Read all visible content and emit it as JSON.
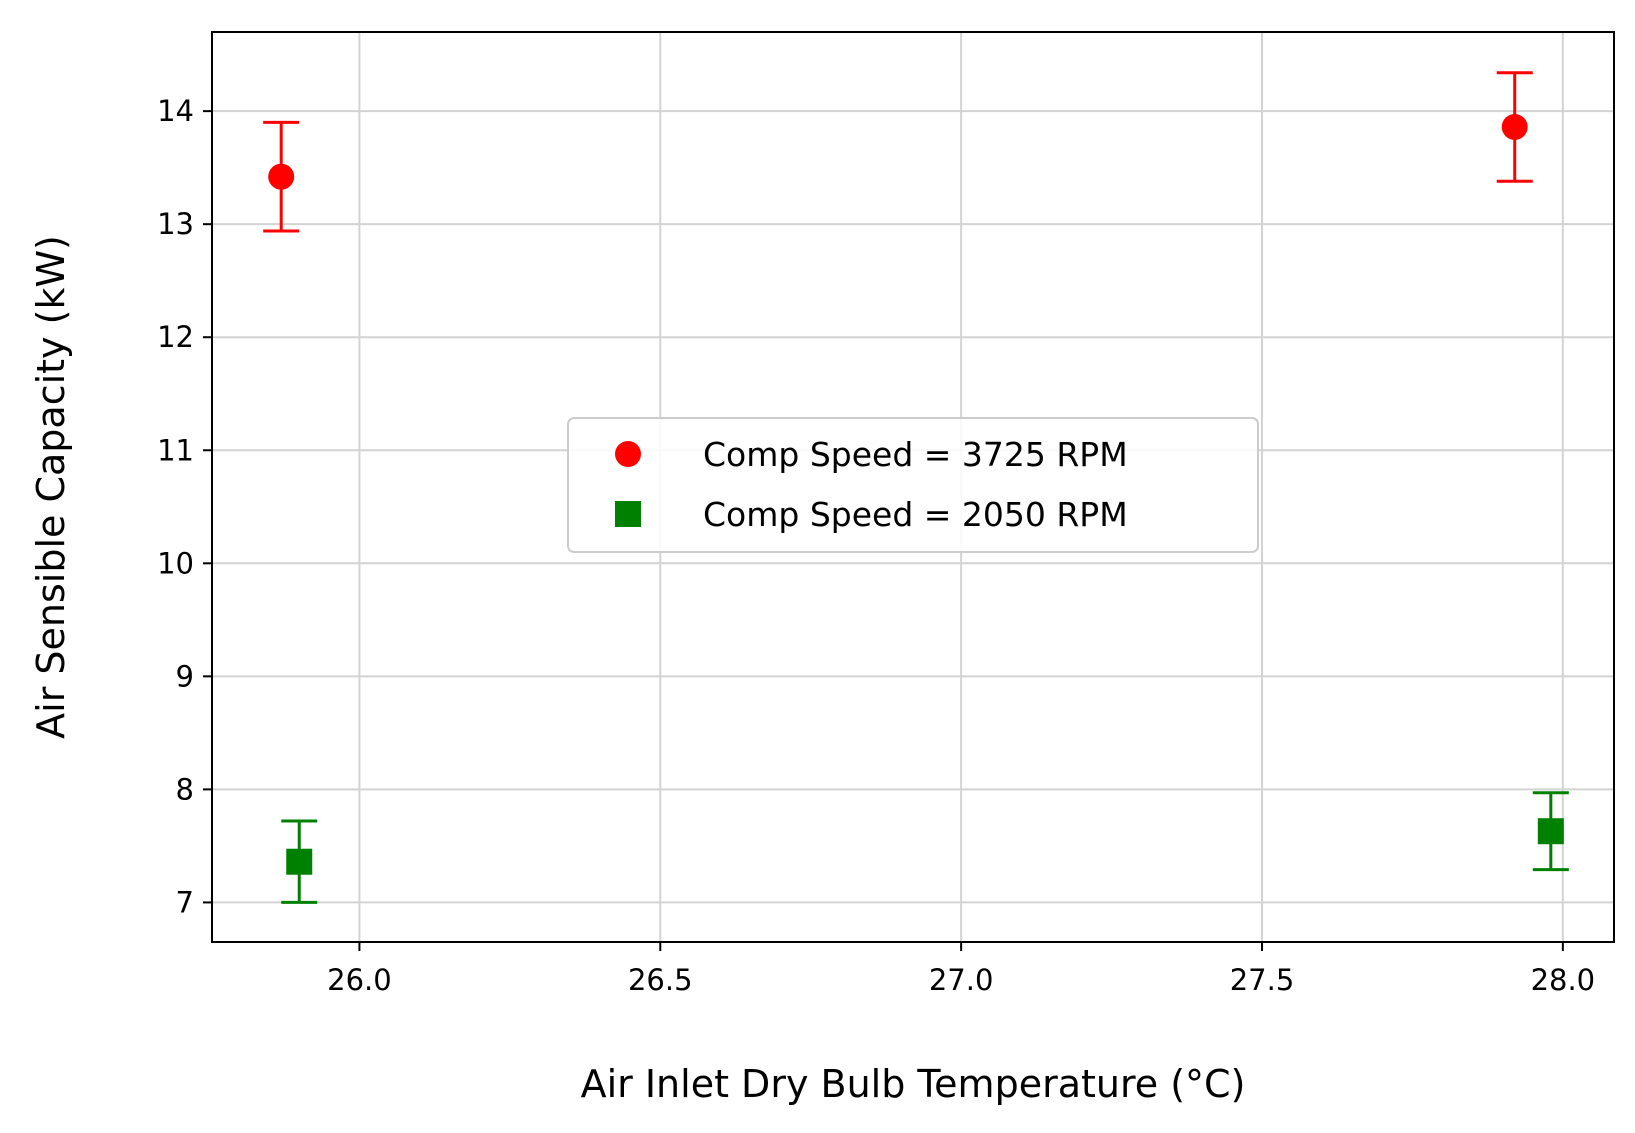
{
  "chart_data": {
    "type": "scatter",
    "title": "",
    "xlabel": "Air Inlet Dry Bulb Temperature (°C)",
    "ylabel": "Air Sensible Capacity (kW)",
    "xlim": [
      25.755,
      28.085
    ],
    "ylim": [
      6.65,
      14.7
    ],
    "xticks": [
      26.0,
      26.5,
      27.0,
      27.5,
      28.0
    ],
    "xtick_labels": [
      "26.0",
      "26.5",
      "27.0",
      "27.5",
      "28.0"
    ],
    "yticks": [
      7,
      8,
      9,
      10,
      11,
      12,
      13,
      14
    ],
    "ytick_labels": [
      "7",
      "8",
      "9",
      "10",
      "11",
      "12",
      "13",
      "14"
    ],
    "grid": true,
    "legend_position": "center",
    "series": [
      {
        "name": "Comp Speed = 3725 RPM",
        "marker": "circle",
        "color": "#ff0000",
        "points": [
          {
            "x": 25.87,
            "y": 13.42,
            "err": 0.48
          },
          {
            "x": 27.92,
            "y": 13.86,
            "err": 0.48
          }
        ]
      },
      {
        "name": "Comp Speed = 2050 RPM",
        "marker": "square",
        "color": "#008000",
        "points": [
          {
            "x": 25.9,
            "y": 7.36,
            "err": 0.36
          },
          {
            "x": 27.98,
            "y": 7.63,
            "err": 0.34
          }
        ]
      }
    ]
  }
}
